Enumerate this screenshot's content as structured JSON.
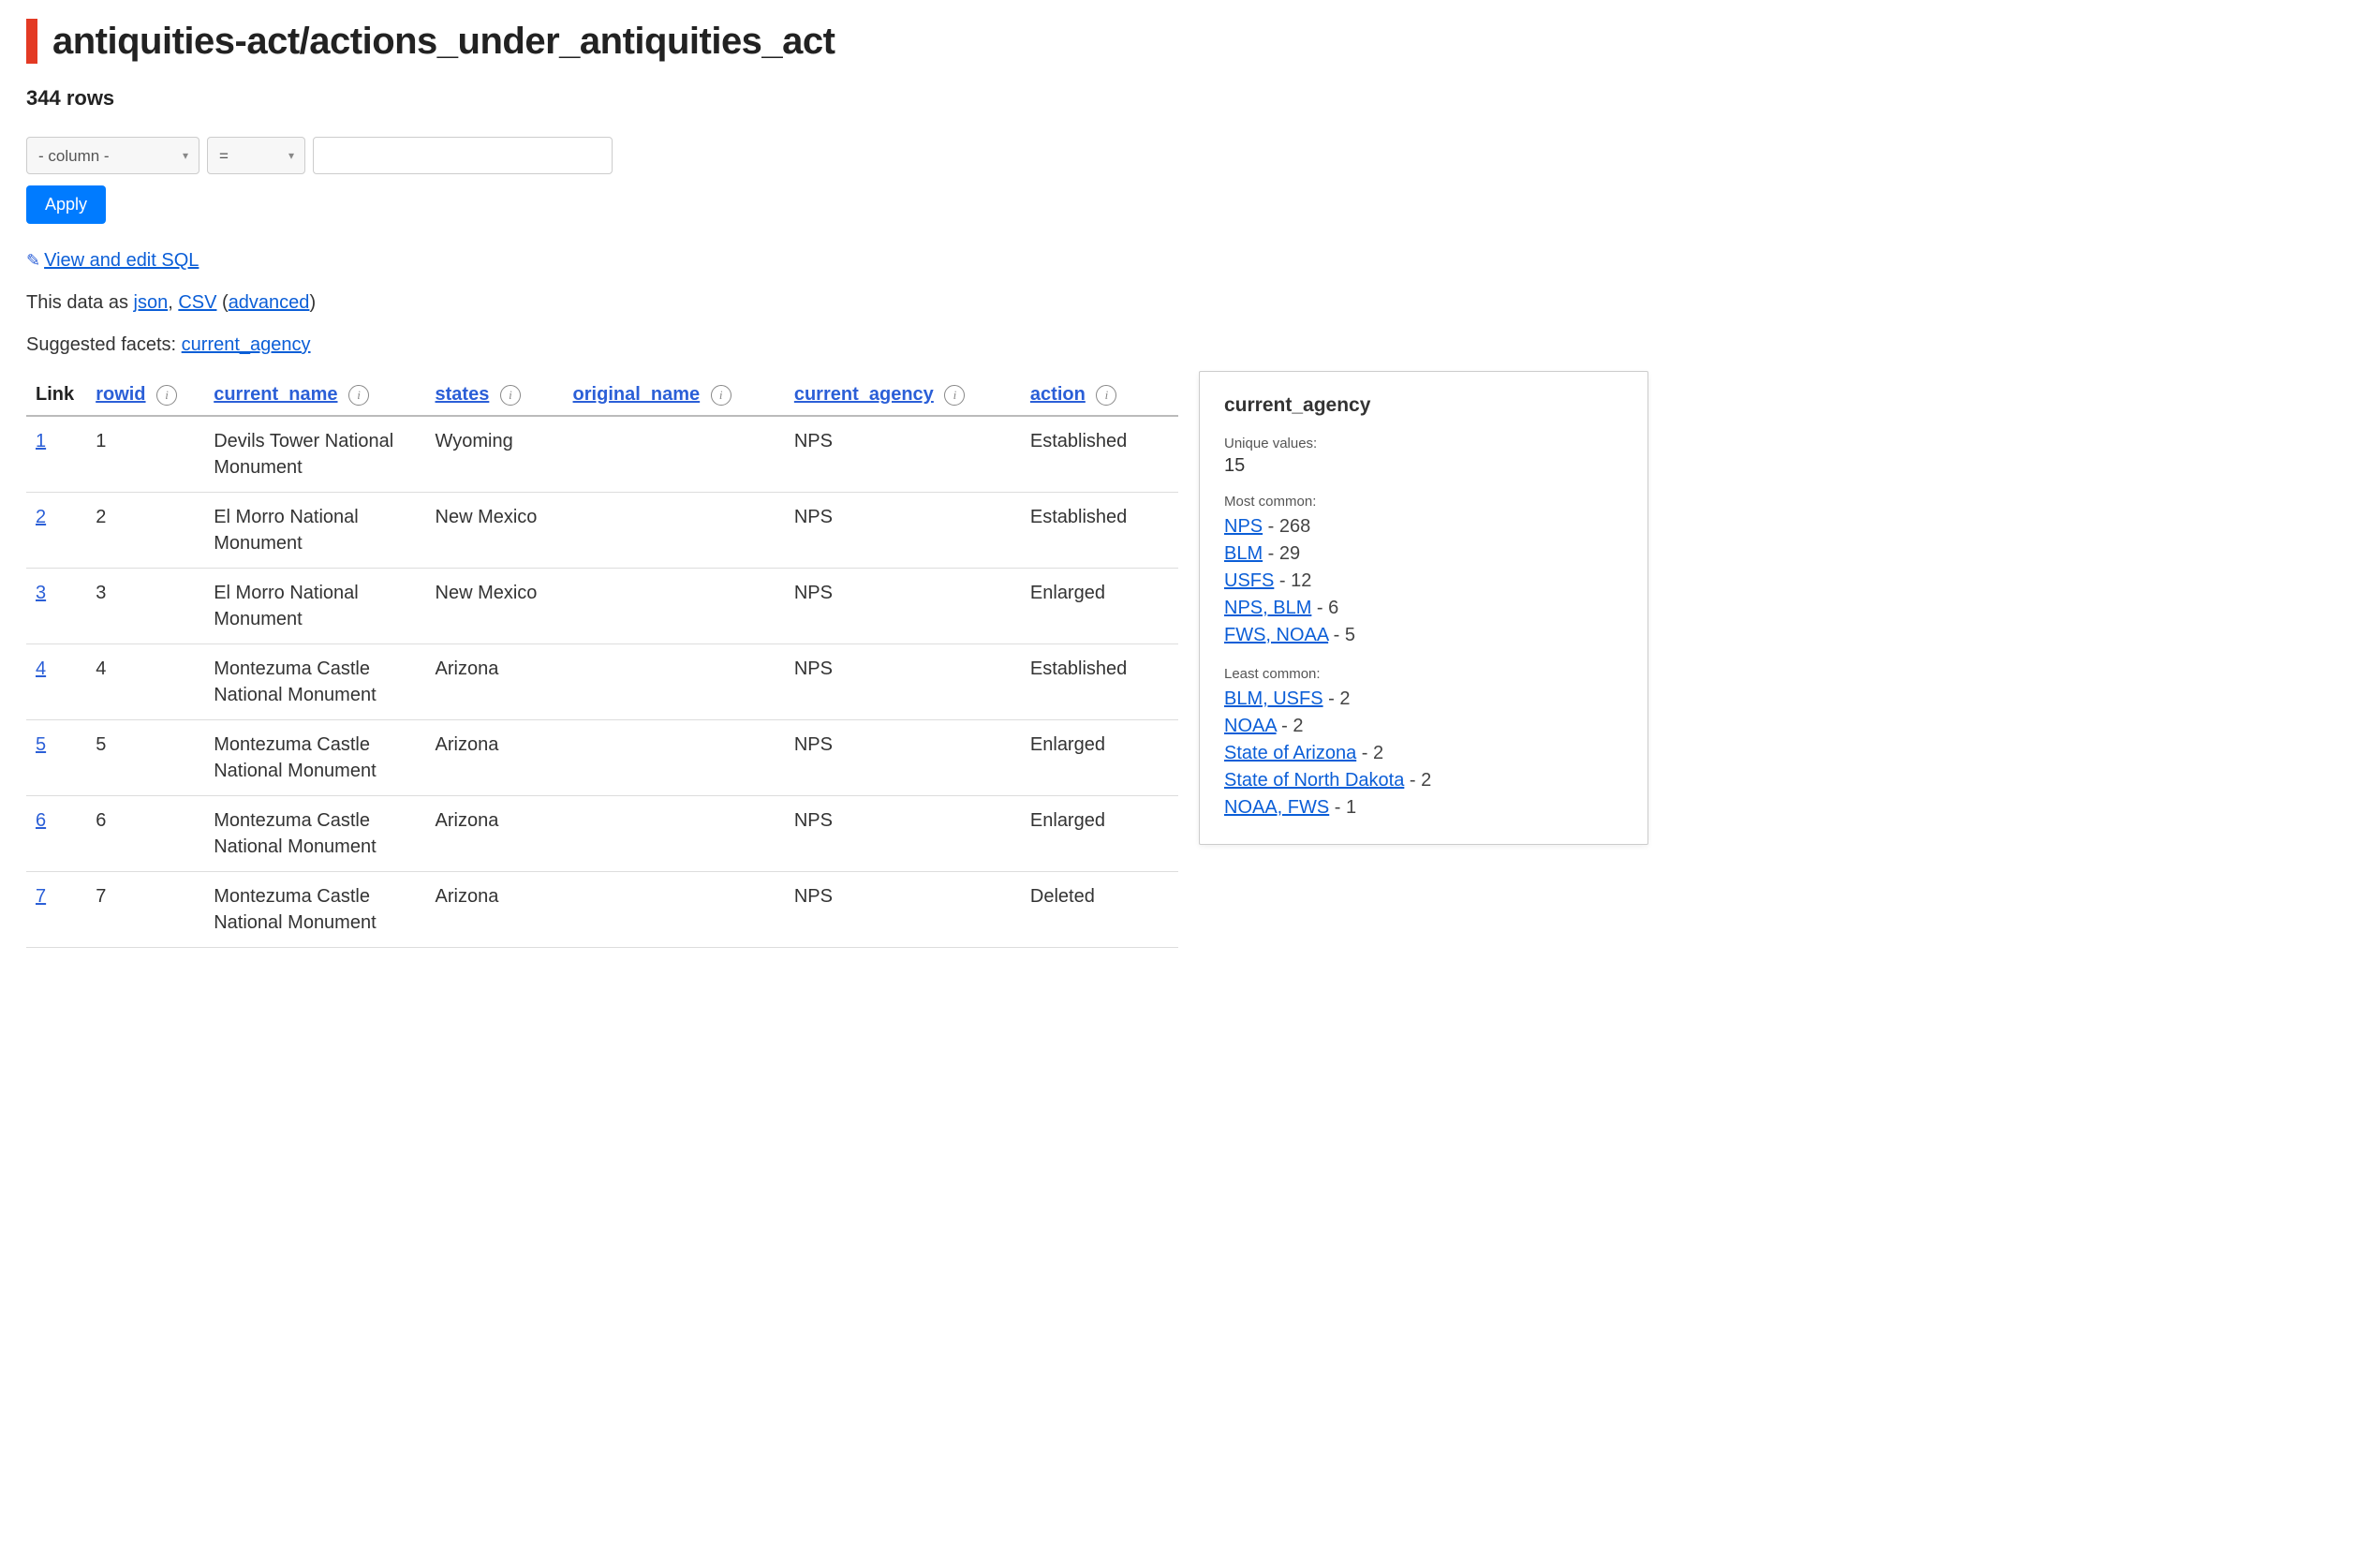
{
  "page": {
    "title": "antiquities-act/actions_under_antiquities_act",
    "row_count": "344 rows"
  },
  "filters": {
    "column_placeholder": "- column -",
    "op_placeholder": "=",
    "value": "",
    "apply_label": "Apply"
  },
  "sql": {
    "link_text": "View and edit SQL"
  },
  "data_as": {
    "prefix": "This data as ",
    "json": "json",
    "comma": ", ",
    "csv": "CSV",
    "open_paren": " (",
    "advanced": "advanced",
    "close_paren": ")"
  },
  "suggested": {
    "prefix": "Suggested facets: ",
    "facet": "current_agency"
  },
  "columns": {
    "link": "Link",
    "rowid": "rowid",
    "current_name": "current_name",
    "states": "states",
    "original_name": "original_name",
    "current_agency": "current_agency",
    "action": "action"
  },
  "rows": [
    {
      "link": "1",
      "rowid": "1",
      "current_name": "Devils Tower National Monument",
      "states": "Wyoming",
      "original_name": "",
      "current_agency": "NPS",
      "action": "Established"
    },
    {
      "link": "2",
      "rowid": "2",
      "current_name": "El Morro National Monument",
      "states": "New Mexico",
      "original_name": "",
      "current_agency": "NPS",
      "action": "Established"
    },
    {
      "link": "3",
      "rowid": "3",
      "current_name": "El Morro National Monument",
      "states": "New Mexico",
      "original_name": "",
      "current_agency": "NPS",
      "action": "Enlarged"
    },
    {
      "link": "4",
      "rowid": "4",
      "current_name": "Montezuma Castle National Monument",
      "states": "Arizona",
      "original_name": "",
      "current_agency": "NPS",
      "action": "Established"
    },
    {
      "link": "5",
      "rowid": "5",
      "current_name": "Montezuma Castle National Monument",
      "states": "Arizona",
      "original_name": "",
      "current_agency": "NPS",
      "action": "Enlarged"
    },
    {
      "link": "6",
      "rowid": "6",
      "current_name": "Montezuma Castle National Monument",
      "states": "Arizona",
      "original_name": "",
      "current_agency": "NPS",
      "action": "Enlarged"
    },
    {
      "link": "7",
      "rowid": "7",
      "current_name": "Montezuma Castle National Monument",
      "states": "Arizona",
      "original_name": "",
      "current_agency": "NPS",
      "action": "Deleted"
    }
  ],
  "tooltip": {
    "title": "current_agency",
    "unique_label": "Unique values:",
    "unique_count": "15",
    "most_label": "Most common:",
    "most_items": [
      {
        "name": "NPS",
        "count": "268"
      },
      {
        "name": "BLM",
        "count": "29"
      },
      {
        "name": "USFS",
        "count": "12"
      },
      {
        "name": "NPS, BLM",
        "count": "6"
      },
      {
        "name": "FWS, NOAA",
        "count": "5"
      }
    ],
    "least_label": "Least common:",
    "least_items": [
      {
        "name": "BLM, USFS",
        "count": "2"
      },
      {
        "name": "NOAA",
        "count": "2"
      },
      {
        "name": "State of Arizona",
        "count": "2"
      },
      {
        "name": "State of North Dakota",
        "count": "2"
      },
      {
        "name": "NOAA, FWS",
        "count": "1"
      }
    ]
  },
  "style": {
    "accent_red": "#e33a24",
    "link_blue": "#0b5ed7",
    "button_blue": "#007bff",
    "border_gray": "#ccc",
    "row_border": "#ddd"
  }
}
